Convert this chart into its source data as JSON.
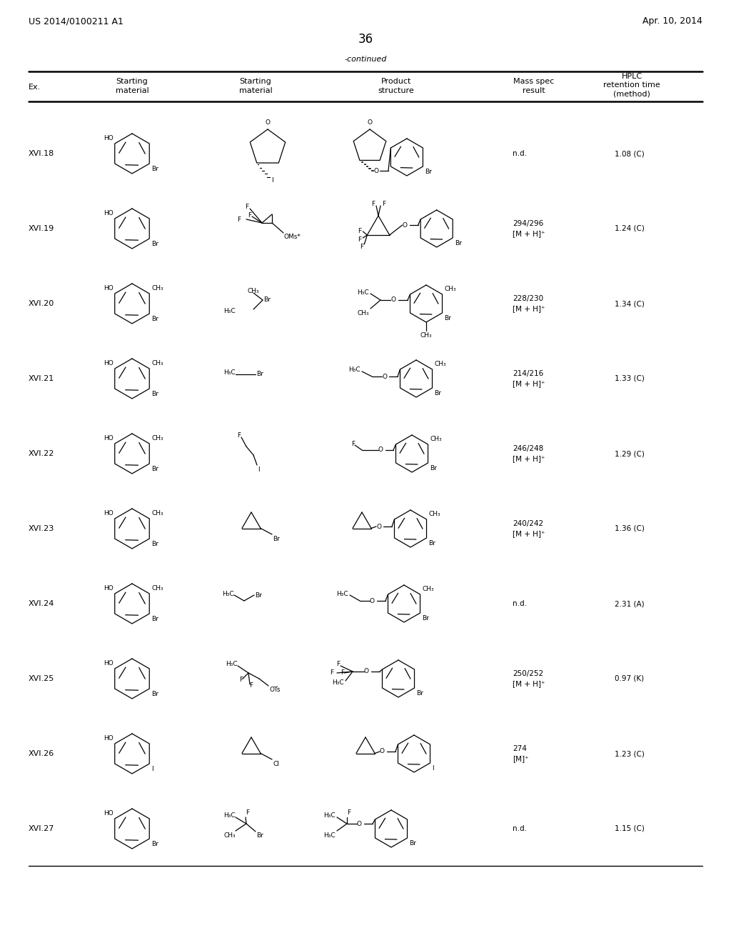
{
  "background_color": "#ffffff",
  "header_left": "US 2014/0100211 A1",
  "header_right": "Apr. 10, 2014",
  "page_number": "36",
  "continued_text": "-continued",
  "rows": [
    {
      "ex": "XVI.18",
      "mass_spec": "n.d.",
      "hplc": "1.08 (C)"
    },
    {
      "ex": "XVI.19",
      "mass_spec": "294/296\n[M + H]⁺",
      "hplc": "1.24 (C)"
    },
    {
      "ex": "XVI.20",
      "mass_spec": "228/230\n[M + H]⁺",
      "hplc": "1.34 (C)"
    },
    {
      "ex": "XVI.21",
      "mass_spec": "214/216\n[M + H]⁺",
      "hplc": "1.33 (C)"
    },
    {
      "ex": "XVI.22",
      "mass_spec": "246/248\n[M + H]⁺",
      "hplc": "1.29 (C)"
    },
    {
      "ex": "XVI.23",
      "mass_spec": "240/242\n[M + H]⁺",
      "hplc": "1.36 (C)"
    },
    {
      "ex": "XVI.24",
      "mass_spec": "n.d.",
      "hplc": "2.31 (A)"
    },
    {
      "ex": "XVI.25",
      "mass_spec": "250/252\n[M + H]⁺",
      "hplc": "0.97 (K)"
    },
    {
      "ex": "XVI.26",
      "mass_spec": "274\n[M]⁺",
      "hplc": "1.23 (C)"
    },
    {
      "ex": "XVI.27",
      "mass_spec": "n.d.",
      "hplc": "1.15 (C)"
    }
  ]
}
